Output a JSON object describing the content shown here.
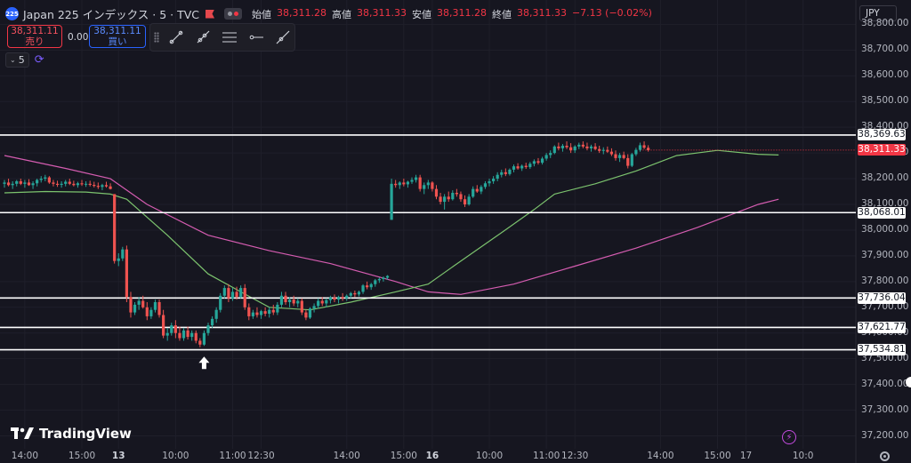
{
  "header": {
    "symbol_badge": "225",
    "title": "Japan 225 インデックス · 5 · TVC",
    "ohlc": [
      {
        "label": "始値",
        "value": "38,311.28"
      },
      {
        "label": "高値",
        "value": "38,311.33"
      },
      {
        "label": "安値",
        "value": "38,311.28"
      },
      {
        "label": "終値",
        "value": "38,311.33"
      },
      {
        "label": "",
        "value": "−7.13 (−0.02%)"
      }
    ]
  },
  "trade": {
    "sell_price": "38,311.11",
    "sell_label": "売り",
    "spread": "0.00",
    "buy_price": "38,311.11",
    "buy_label": "買い"
  },
  "interval": {
    "value": "5"
  },
  "currency": "JPY",
  "brand": {
    "name": "TradingView"
  },
  "colors": {
    "up": "#26a69a",
    "down": "#ef5350",
    "ma_short": "#7cc36e",
    "ma_long": "#d45cb0",
    "level": "#ffffff",
    "last": "#f23645",
    "bg": "#161620"
  },
  "chart_data": {
    "type": "candlestick",
    "ylim": [
      37150,
      38860
    ],
    "y_ticks": [
      {
        "value": 38800,
        "label": "38,800.00"
      },
      {
        "value": 38700,
        "label": "38,700.00"
      },
      {
        "value": 38600,
        "label": "38,600.00"
      },
      {
        "value": 38500,
        "label": "38,500.00"
      },
      {
        "value": 38400,
        "label": "38,400.00"
      },
      {
        "value": 38300,
        "label": "38,300.00"
      },
      {
        "value": 38200,
        "label": "38,200.00"
      },
      {
        "value": 38100,
        "label": "38,100.00"
      },
      {
        "value": 38000,
        "label": "38,000.00"
      },
      {
        "value": 37900,
        "label": "37,900.00"
      },
      {
        "value": 37800,
        "label": "37,800.00"
      },
      {
        "value": 37700,
        "label": "37,700.00"
      },
      {
        "value": 37600,
        "label": "37,600.00"
      },
      {
        "value": 37500,
        "label": "37,500.00"
      },
      {
        "value": 37400,
        "label": "37,400.00"
      },
      {
        "value": 37300,
        "label": "37,300.00"
      },
      {
        "value": 37200,
        "label": "37,200.00"
      }
    ],
    "x_ticks": [
      {
        "index": 5,
        "label": "14:00",
        "bold": false
      },
      {
        "index": 19,
        "label": "15:00",
        "bold": false
      },
      {
        "index": 28,
        "label": "13",
        "bold": true
      },
      {
        "index": 42,
        "label": "10:00",
        "bold": false
      },
      {
        "index": 56,
        "label": "11:00",
        "bold": false
      },
      {
        "index": 63,
        "label": "12:30",
        "bold": false
      },
      {
        "index": 84,
        "label": "14:00",
        "bold": false
      },
      {
        "index": 98,
        "label": "15:00",
        "bold": false
      },
      {
        "index": 105,
        "label": "16",
        "bold": true
      },
      {
        "index": 119,
        "label": "10:00",
        "bold": false
      },
      {
        "index": 133,
        "label": "11:00",
        "bold": false
      },
      {
        "index": 140,
        "label": "12:30",
        "bold": false
      },
      {
        "index": 161,
        "label": "14:00",
        "bold": false
      },
      {
        "index": 175,
        "label": "15:00",
        "bold": false
      },
      {
        "index": 182,
        "label": "17",
        "bold": false
      },
      {
        "index": 196,
        "label": "10:0",
        "bold": false
      }
    ],
    "horizontal_levels": [
      {
        "value": 38369.63,
        "label": "38,369.63"
      },
      {
        "value": 38068.01,
        "label": "38,068.01"
      },
      {
        "value": 37736.04,
        "label": "37,736.04"
      },
      {
        "value": 37621.77,
        "label": "37,621.77"
      },
      {
        "value": 37534.81,
        "label": "37,534.81"
      }
    ],
    "last_price": {
      "value": 38311.33,
      "label": "38,311.33"
    },
    "marker_arrow_index": 49,
    "candles": [
      [
        38180,
        38195,
        38165,
        38185
      ],
      [
        38185,
        38200,
        38170,
        38175
      ],
      [
        38175,
        38190,
        38160,
        38180
      ],
      [
        38180,
        38195,
        38170,
        38190
      ],
      [
        38190,
        38200,
        38175,
        38180
      ],
      [
        38180,
        38195,
        38165,
        38185
      ],
      [
        38185,
        38198,
        38172,
        38175
      ],
      [
        38175,
        38190,
        38160,
        38182
      ],
      [
        38182,
        38200,
        38170,
        38195
      ],
      [
        38195,
        38210,
        38185,
        38200
      ],
      [
        38200,
        38215,
        38190,
        38205
      ],
      [
        38205,
        38210,
        38180,
        38185
      ],
      [
        38185,
        38195,
        38170,
        38180
      ],
      [
        38180,
        38192,
        38168,
        38176
      ],
      [
        38176,
        38190,
        38165,
        38180
      ],
      [
        38180,
        38195,
        38170,
        38188
      ],
      [
        38188,
        38200,
        38175,
        38180
      ],
      [
        38180,
        38192,
        38170,
        38175
      ],
      [
        38175,
        38188,
        38165,
        38182
      ],
      [
        38182,
        38195,
        38172,
        38178
      ],
      [
        38178,
        38190,
        38168,
        38180
      ],
      [
        38180,
        38192,
        38170,
        38176
      ],
      [
        38176,
        38188,
        38166,
        38172
      ],
      [
        38172,
        38185,
        38160,
        38168
      ],
      [
        38168,
        38180,
        38155,
        38175
      ],
      [
        38175,
        38188,
        38165,
        38170
      ],
      [
        38170,
        38182,
        38158,
        38160
      ],
      [
        38140,
        38140,
        37870,
        37880
      ],
      [
        37880,
        37910,
        37860,
        37890
      ],
      [
        37890,
        37935,
        37880,
        37925
      ],
      [
        37925,
        37940,
        37720,
        37740
      ],
      [
        37740,
        37760,
        37660,
        37680
      ],
      [
        37680,
        37720,
        37670,
        37710
      ],
      [
        37710,
        37740,
        37690,
        37725
      ],
      [
        37725,
        37745,
        37695,
        37700
      ],
      [
        37700,
        37720,
        37650,
        37665
      ],
      [
        37665,
        37700,
        37655,
        37690
      ],
      [
        37690,
        37730,
        37680,
        37720
      ],
      [
        37720,
        37730,
        37660,
        37670
      ],
      [
        37670,
        37690,
        37580,
        37590
      ],
      [
        37590,
        37620,
        37570,
        37600
      ],
      [
        37600,
        37640,
        37590,
        37630
      ],
      [
        37630,
        37650,
        37580,
        37600
      ],
      [
        37600,
        37625,
        37570,
        37580
      ],
      [
        37580,
        37620,
        37570,
        37610
      ],
      [
        37610,
        37625,
        37575,
        37585
      ],
      [
        37585,
        37610,
        37570,
        37600
      ],
      [
        37600,
        37610,
        37560,
        37570
      ],
      [
        37570,
        37580,
        37545,
        37555
      ],
      [
        37555,
        37610,
        37550,
        37600
      ],
      [
        37600,
        37640,
        37590,
        37630
      ],
      [
        37630,
        37665,
        37620,
        37655
      ],
      [
        37655,
        37700,
        37640,
        37690
      ],
      [
        37690,
        37755,
        37680,
        37745
      ],
      [
        37745,
        37785,
        37735,
        37775
      ],
      [
        37775,
        37790,
        37720,
        37735
      ],
      [
        37735,
        37775,
        37725,
        37760
      ],
      [
        37760,
        37780,
        37730,
        37740
      ],
      [
        37740,
        37785,
        37735,
        37775
      ],
      [
        37775,
        37790,
        37690,
        37700
      ],
      [
        37700,
        37715,
        37650,
        37665
      ],
      [
        37665,
        37690,
        37655,
        37680
      ],
      [
        37680,
        37700,
        37660,
        37670
      ],
      [
        37670,
        37690,
        37655,
        37685
      ],
      [
        37685,
        37700,
        37665,
        37675
      ],
      [
        37675,
        37700,
        37660,
        37690
      ],
      [
        37690,
        37710,
        37670,
        37680
      ],
      [
        37680,
        37720,
        37670,
        37710
      ],
      [
        37710,
        37760,
        37700,
        37745
      ],
      [
        37745,
        37760,
        37710,
        37720
      ],
      [
        37720,
        37740,
        37700,
        37730
      ],
      [
        37730,
        37745,
        37705,
        37715
      ],
      [
        37715,
        37735,
        37700,
        37725
      ],
      [
        37725,
        37735,
        37670,
        37680
      ],
      [
        37680,
        37690,
        37650,
        37660
      ],
      [
        37660,
        37700,
        37655,
        37695
      ],
      [
        37695,
        37715,
        37680,
        37705
      ],
      [
        37705,
        37735,
        37695,
        37725
      ],
      [
        37725,
        37740,
        37705,
        37715
      ],
      [
        37715,
        37735,
        37700,
        37728
      ],
      [
        37728,
        37745,
        37715,
        37738
      ],
      [
        37738,
        37750,
        37720,
        37730
      ],
      [
        37730,
        37745,
        37715,
        37740
      ],
      [
        37740,
        37755,
        37725,
        37735
      ],
      [
        37735,
        37750,
        37725,
        37745
      ],
      [
        37745,
        37760,
        37735,
        37755
      ],
      [
        37755,
        37765,
        37740,
        37750
      ],
      [
        37750,
        37765,
        37742,
        37760
      ],
      [
        37760,
        37790,
        37752,
        37785
      ],
      [
        37785,
        37800,
        37770,
        37778
      ],
      [
        37778,
        37795,
        37768,
        37790
      ],
      [
        37790,
        37810,
        37780,
        37805
      ],
      [
        37805,
        37815,
        37795,
        37810
      ],
      [
        37810,
        37820,
        37800,
        37815
      ],
      [
        37815,
        37825,
        37808,
        37822
      ],
      [
        38040,
        38200,
        38040,
        38180
      ],
      [
        38180,
        38195,
        38165,
        38175
      ],
      [
        38175,
        38190,
        38160,
        38185
      ],
      [
        38185,
        38200,
        38170,
        38178
      ],
      [
        38178,
        38192,
        38165,
        38188
      ],
      [
        38188,
        38205,
        38180,
        38195
      ],
      [
        38195,
        38215,
        38185,
        38205
      ],
      [
        38205,
        38215,
        38150,
        38160
      ],
      [
        38160,
        38185,
        38140,
        38175
      ],
      [
        38175,
        38195,
        38160,
        38185
      ],
      [
        38185,
        38190,
        38150,
        38160
      ],
      [
        38160,
        38175,
        38120,
        38130
      ],
      [
        38130,
        38145,
        38100,
        38110
      ],
      [
        38110,
        38140,
        38080,
        38130
      ],
      [
        38130,
        38150,
        38110,
        38120
      ],
      [
        38120,
        38155,
        38115,
        38145
      ],
      [
        38145,
        38160,
        38130,
        38140
      ],
      [
        38140,
        38150,
        38110,
        38120
      ],
      [
        38120,
        38135,
        38090,
        38100
      ],
      [
        38100,
        38140,
        38095,
        38130
      ],
      [
        38130,
        38170,
        38125,
        38160
      ],
      [
        38160,
        38175,
        38145,
        38150
      ],
      [
        38150,
        38175,
        38140,
        38168
      ],
      [
        38168,
        38190,
        38160,
        38182
      ],
      [
        38182,
        38200,
        38170,
        38190
      ],
      [
        38190,
        38210,
        38180,
        38200
      ],
      [
        38200,
        38225,
        38190,
        38215
      ],
      [
        38215,
        38235,
        38205,
        38225
      ],
      [
        38225,
        38240,
        38210,
        38218
      ],
      [
        38218,
        38240,
        38212,
        38235
      ],
      [
        38235,
        38255,
        38225,
        38248
      ],
      [
        38248,
        38260,
        38235,
        38240
      ],
      [
        38240,
        38255,
        38230,
        38250
      ],
      [
        38250,
        38262,
        38238,
        38245
      ],
      [
        38245,
        38265,
        38238,
        38258
      ],
      [
        38258,
        38275,
        38248,
        38268
      ],
      [
        38268,
        38280,
        38255,
        38262
      ],
      [
        38262,
        38285,
        38255,
        38278
      ],
      [
        38278,
        38300,
        38270,
        38292
      ],
      [
        38292,
        38310,
        38280,
        38300
      ],
      [
        38300,
        38330,
        38295,
        38325
      ],
      [
        38325,
        38340,
        38310,
        38318
      ],
      [
        38318,
        38335,
        38305,
        38328
      ],
      [
        38328,
        38345,
        38315,
        38322
      ],
      [
        38322,
        38338,
        38300,
        38310
      ],
      [
        38310,
        38330,
        38300,
        38325
      ],
      [
        38325,
        38340,
        38315,
        38332
      ],
      [
        38332,
        38345,
        38318,
        38325
      ],
      [
        38325,
        38340,
        38310,
        38318
      ],
      [
        38318,
        38332,
        38305,
        38325
      ],
      [
        38325,
        38338,
        38310,
        38315
      ],
      [
        38315,
        38328,
        38300,
        38308
      ],
      [
        38308,
        38322,
        38295,
        38312
      ],
      [
        38312,
        38325,
        38300,
        38305
      ],
      [
        38305,
        38318,
        38288,
        38295
      ],
      [
        38295,
        38310,
        38270,
        38280
      ],
      [
        38280,
        38300,
        38265,
        38292
      ],
      [
        38292,
        38305,
        38275,
        38280
      ],
      [
        38280,
        38295,
        38240,
        38250
      ],
      [
        38250,
        38300,
        38245,
        38295
      ],
      [
        38295,
        38320,
        38288,
        38312
      ],
      [
        38312,
        38340,
        38305,
        38330
      ],
      [
        38330,
        38345,
        38315,
        38320
      ],
      [
        38320,
        38330,
        38305,
        38311
      ]
    ],
    "ma_short": [
      [
        0,
        38145
      ],
      [
        10,
        38150
      ],
      [
        20,
        38148
      ],
      [
        26,
        38140
      ],
      [
        30,
        38120
      ],
      [
        40,
        37980
      ],
      [
        50,
        37830
      ],
      [
        58,
        37760
      ],
      [
        65,
        37700
      ],
      [
        75,
        37690
      ],
      [
        85,
        37720
      ],
      [
        96,
        37760
      ],
      [
        104,
        37790
      ],
      [
        112,
        37880
      ],
      [
        122,
        37990
      ],
      [
        130,
        38080
      ],
      [
        135,
        38140
      ],
      [
        145,
        38180
      ],
      [
        155,
        38230
      ],
      [
        165,
        38290
      ],
      [
        175,
        38310
      ],
      [
        185,
        38295
      ],
      [
        190,
        38292
      ]
    ],
    "ma_long": [
      [
        0,
        38290
      ],
      [
        15,
        38240
      ],
      [
        26,
        38200
      ],
      [
        35,
        38100
      ],
      [
        50,
        37980
      ],
      [
        65,
        37920
      ],
      [
        80,
        37870
      ],
      [
        96,
        37800
      ],
      [
        104,
        37760
      ],
      [
        112,
        37750
      ],
      [
        125,
        37790
      ],
      [
        140,
        37860
      ],
      [
        155,
        37930
      ],
      [
        170,
        38010
      ],
      [
        185,
        38100
      ],
      [
        190,
        38120
      ]
    ]
  }
}
